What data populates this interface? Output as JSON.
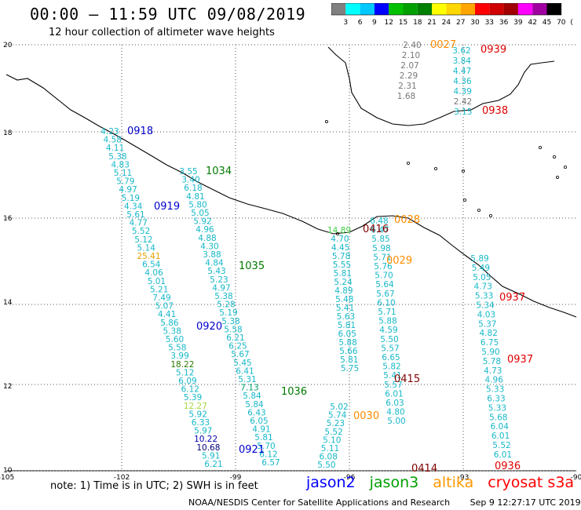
{
  "header": {
    "title": "00:00 – 11:59 UTC 09/08/2019",
    "subtitle": "12 hour collection of altimeter wave heights"
  },
  "colorbar": {
    "ticks": [
      "3",
      "6",
      "9",
      "12",
      "15",
      "18",
      "21",
      "24",
      "27",
      "30",
      "33",
      "36",
      "39",
      "42",
      "45",
      "70",
      "(ft)"
    ],
    "colors": [
      "#808080",
      "#00ffff",
      "#00c8ff",
      "#0000ff",
      "#00c000",
      "#00a000",
      "#008000",
      "#ffff00",
      "#ffd700",
      "#ffa500",
      "#ff0000",
      "#d00000",
      "#a00000",
      "#ff00ff",
      "#a000a0",
      "#000000"
    ]
  },
  "axes": {
    "lon_ticks": [
      "-105",
      "-102",
      "-99",
      "-96",
      "-93",
      "-90"
    ],
    "lat_ticks": [
      "20",
      "18",
      "16",
      "14",
      "12",
      "10"
    ]
  },
  "passes": [
    {
      "label": "0918",
      "color": "#0000cc"
    },
    {
      "label": "1034",
      "color": "#007a00"
    },
    {
      "label": "0919",
      "color": "#0000cc"
    },
    {
      "label": "1035",
      "color": "#007a00"
    },
    {
      "label": "0920",
      "color": "#0000cc"
    },
    {
      "label": "1036",
      "color": "#007a00"
    },
    {
      "label": "0921",
      "color": "#0000cc"
    },
    {
      "label": "0027",
      "color": "#ff8c00"
    },
    {
      "label": "0939",
      "color": "#e00000"
    },
    {
      "label": "0938",
      "color": "#e00000"
    },
    {
      "label": "0416",
      "color": "#800000"
    },
    {
      "label": "0028",
      "color": "#ff8c00"
    },
    {
      "label": "0029",
      "color": "#ff8c00"
    },
    {
      "label": "0937",
      "color": "#e00000"
    },
    {
      "label": "0937",
      "color": "#e00000"
    },
    {
      "label": "0415",
      "color": "#800000"
    },
    {
      "label": "0030",
      "color": "#ff8c00"
    },
    {
      "label": "0414",
      "color": "#800000"
    },
    {
      "label": "0936",
      "color": "#e00000"
    }
  ],
  "tracks": {
    "jason2_a": [
      "4.23",
      "4.58",
      "4.11",
      "5.38",
      "4.83",
      "5.11",
      "5.79",
      "4.97",
      "5.19",
      "4.34",
      "5.61",
      "4.77",
      "5.52",
      "5.12",
      "5.14",
      "25.41",
      "6.54",
      "4.06",
      "5.01",
      "5.21",
      "7.49",
      "5.07",
      "4.41",
      "5.86",
      "5.38",
      "5.60",
      "5.58",
      "3.99",
      "18.22",
      "5.12",
      "6.09",
      "6.12",
      "5.39",
      "12.27",
      "5.92",
      "6.33",
      "5.97",
      "10.22",
      "10.68",
      "5.91",
      "6.21"
    ],
    "jason3_b": [
      "3.55",
      "3.40",
      "6.18",
      "4.81",
      "5.80",
      "5.05",
      "5.92",
      "4.96",
      "4.88",
      "4.30",
      "3.88",
      "4.84",
      "5.43",
      "5.23",
      "4.97",
      "5.38",
      "5.28",
      "5.19",
      "5.38",
      "5.58",
      "6.21",
      "6.25",
      "5.67",
      "5.45",
      "6.41",
      "5.31",
      "7.13",
      "5.84",
      "5.84",
      "6.43",
      "6.05",
      "4.91",
      "5.81",
      "5.70",
      "6.12",
      "6.57"
    ],
    "altika_c": [
      "5.02",
      "5.74",
      "5.23",
      "5.52",
      "5.10",
      "5.11",
      "6.08",
      "5.50"
    ],
    "col_d": [
      "14.89",
      "4.70",
      "4.45",
      "5.78",
      "5.55",
      "5.81",
      "5.24",
      "4.89",
      "5.48",
      "5.41",
      "5.63",
      "5.81",
      "6.05",
      "5.88",
      "5.66",
      "5.81",
      "5.75"
    ],
    "col_e": [
      "6.48",
      "6.47",
      "5.85",
      "5.98",
      "5.71",
      "5.76",
      "5.70",
      "5.64",
      "5.67",
      "6.10",
      "5.71",
      "5.88",
      "4.59",
      "5.50",
      "5.57",
      "6.65",
      "5.82",
      "5.41",
      "5.57",
      "6.01",
      "6.03",
      "4.80",
      "5.00"
    ],
    "cryosat_f": [
      "5.89",
      "5.49",
      "5.05",
      "4.73",
      "5.33",
      "5.34",
      "4.03",
      "5.37",
      "4.82",
      "6.75",
      "5.90",
      "5.78",
      "4.73",
      "4.96",
      "5.33",
      "6.33",
      "5.33",
      "5.68",
      "6.04",
      "6.01",
      "5.52",
      "6.01"
    ],
    "altika_top": [
      "2.40",
      "2.10",
      "2.07",
      "2.29",
      "2.31",
      "1.68"
    ],
    "cryosat_top": [
      "3.62",
      "3.84",
      "4.47",
      "4.36",
      "4.39",
      "2.42",
      "3.15"
    ]
  },
  "footer": {
    "note": "note:  1) Time is in UTC;  2) SWH is in feet",
    "legend": [
      {
        "name": "jason2",
        "color": "#0000ff"
      },
      {
        "name": "jason3",
        "color": "#00a000"
      },
      {
        "name": "altika",
        "color": "#ff9900"
      },
      {
        "name": "cryosat s3a",
        "color": "#ff0000"
      }
    ],
    "credit_left": "NOAA/NESDIS Center for Satellite Applications and Research",
    "credit_right": "Sep  9 12:27:17 UTC 2019"
  }
}
